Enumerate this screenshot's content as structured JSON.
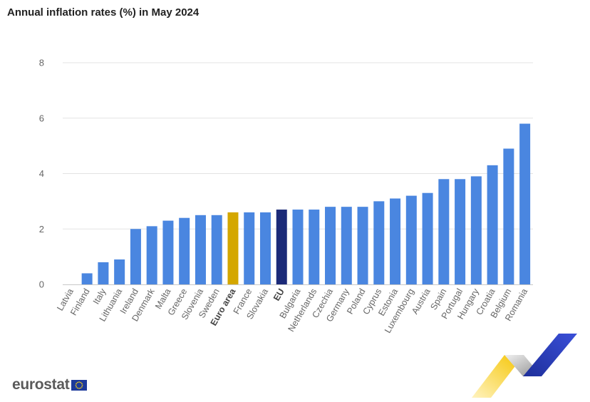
{
  "header": {
    "title": "Annual inflation rates (%) in May 2024"
  },
  "logo": {
    "text": "eurostat"
  },
  "colors": {
    "bar": "#4a86e0",
    "euro_area": "#d4a700",
    "eu": "#1b2a78",
    "grid": "#e3e3e3",
    "axis_text": "#666666"
  },
  "chart_data": {
    "type": "bar",
    "title": "Annual inflation rates (%) in May 2024",
    "xlabel": "",
    "ylabel": "",
    "ylim": [
      0,
      8
    ],
    "yticks": [
      0,
      2,
      4,
      6,
      8
    ],
    "grid": true,
    "categories": [
      "Latvia",
      "Finland",
      "Italy",
      "Lithuania",
      "Ireland",
      "Denmark",
      "Malta",
      "Greece",
      "Slovenia",
      "Sweden",
      "Euro area",
      "France",
      "Slovakia",
      "EU",
      "Bulgaria",
      "Netherlands",
      "Czechia",
      "Germany",
      "Poland",
      "Cyprus",
      "Estonia",
      "Luxembourg",
      "Austria",
      "Spain",
      "Portugal",
      "Hungary",
      "Croatia",
      "Belgium",
      "Romania"
    ],
    "values": [
      0.0,
      0.4,
      0.8,
      0.9,
      2.0,
      2.1,
      2.3,
      2.4,
      2.5,
      2.5,
      2.6,
      2.6,
      2.6,
      2.7,
      2.7,
      2.7,
      2.8,
      2.8,
      2.8,
      3.0,
      3.1,
      3.2,
      3.3,
      3.8,
      3.8,
      3.9,
      4.3,
      4.9,
      5.8
    ],
    "highlight": {
      "Euro area": "euro_area",
      "EU": "eu"
    },
    "bold_labels": [
      "Euro area",
      "EU"
    ]
  }
}
